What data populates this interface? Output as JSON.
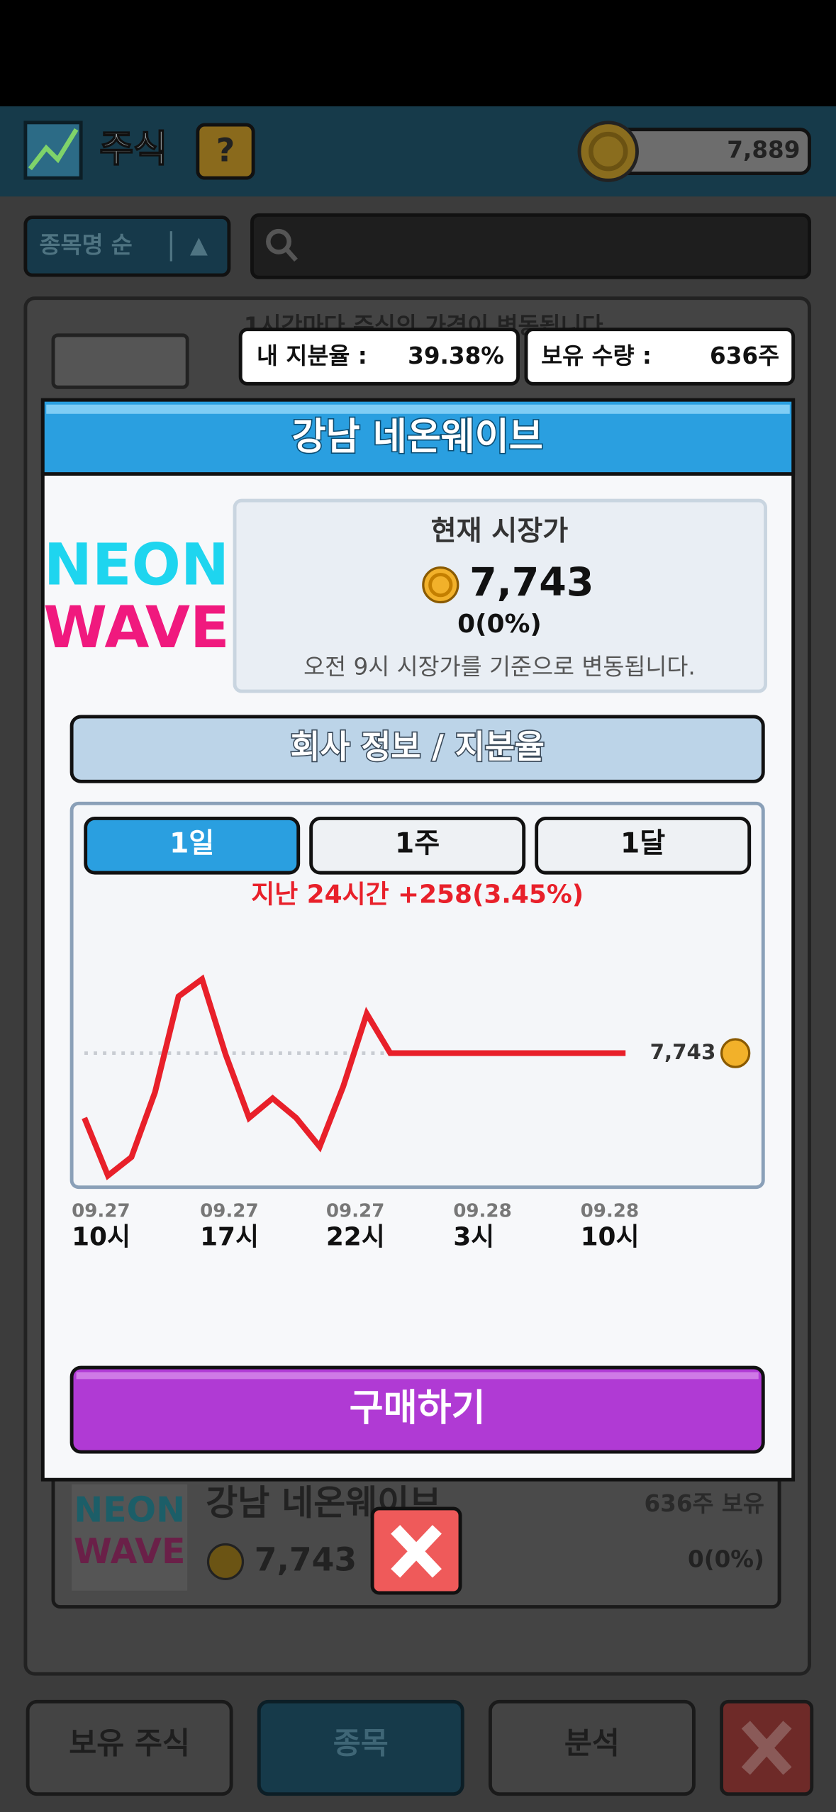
{
  "header": {
    "title": "주식",
    "help": "?",
    "coins": "7,889"
  },
  "background": {
    "sort": "종목명 순",
    "sort_arrow": "▲",
    "notice": "1시간마다 주식의 가격이 변동됩니다.",
    "stock_card": {
      "logo": [
        "NEON",
        "WAVE"
      ],
      "name": "강남 네온웨이브",
      "price": "7,743",
      "holding": "636주 보유",
      "change": "0(0%)"
    },
    "tabs": [
      "보유 주식",
      "종목",
      "분석"
    ]
  },
  "chips": [
    {
      "label": "내 지분율 :",
      "value": "39.38%"
    },
    {
      "label": "보유 수량 :",
      "value": "636주"
    }
  ],
  "modal": {
    "title": "강남 네온웨이브",
    "logo": [
      "NEON",
      "WAVE"
    ],
    "price_box": {
      "heading": "현재 시장가",
      "price": "7,743",
      "change": "0(0%)",
      "note": "오전 9시 시장가를 기준으로 변동됩니다."
    },
    "info_button": "회사 정보 / 지분율",
    "period_tabs": [
      "1일",
      "1주",
      "1달"
    ],
    "buy_button": "구매하기"
  },
  "chart_data": {
    "type": "line",
    "subtitle": "지난 24시간 +258(3.45%)",
    "color": "#e8202a",
    "values": [
      7485,
      7255,
      7329,
      7587,
      7969,
      8038,
      7738,
      7485,
      7563,
      7485,
      7370,
      7610,
      7900,
      7743,
      7743,
      7743,
      7743,
      7743,
      7743,
      7743,
      7743,
      7743,
      7743,
      7743
    ],
    "reference": {
      "value": 7743,
      "label": "7,743"
    },
    "x_labels": [
      {
        "date": "09.27",
        "hour": "10시"
      },
      {
        "date": "09.27",
        "hour": "17시"
      },
      {
        "date": "09.27",
        "hour": "22시"
      },
      {
        "date": "09.28",
        "hour": "3시"
      },
      {
        "date": "09.28",
        "hour": "10시"
      }
    ]
  }
}
